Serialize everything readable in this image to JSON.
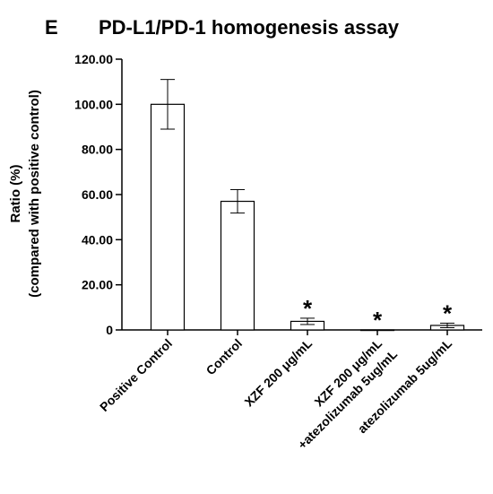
{
  "chart_data": {
    "type": "bar",
    "panel_label": "E",
    "title": "PD-L1/PD-1 homogenesis assay",
    "ylabel_lines": [
      "Ratio (%)",
      "(compared with positive control)"
    ],
    "xlabel": "",
    "ylim": [
      0,
      120
    ],
    "yticks": [
      0,
      20,
      40,
      60,
      80,
      100,
      120
    ],
    "ytick_labels": [
      "0",
      "20.00",
      "40.00",
      "60.00",
      "80.00",
      "100.00",
      "120.00"
    ],
    "categories": [
      [
        "Positive Control"
      ],
      [
        "Control"
      ],
      [
        "XZF 200 μg/mL"
      ],
      [
        "XZF 200 μg/mL",
        "+atezolizumab 5ug/mL"
      ],
      [
        "atezolizumab 5ug/mL"
      ]
    ],
    "values": [
      100,
      57,
      3.8,
      0,
      2.0
    ],
    "errors": [
      11,
      5.2,
      1.4,
      0,
      1.0
    ],
    "significance": [
      "",
      "",
      "*",
      "*",
      "*"
    ],
    "grid": false,
    "legend": "none"
  }
}
